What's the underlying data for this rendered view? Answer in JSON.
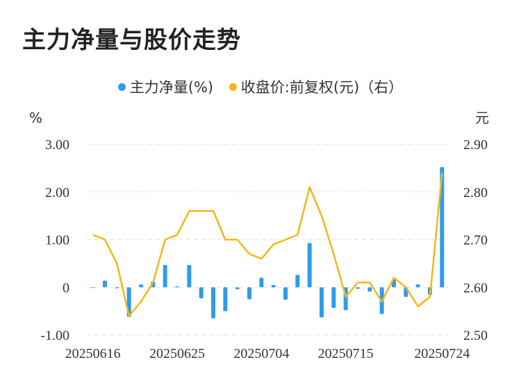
{
  "title": "主力净量与股价走势",
  "legend": {
    "series1": "主力净量(%)",
    "series2": "收盘价:前复权(元)（右）"
  },
  "colors": {
    "bar": "#2f9ceb",
    "line": "#f5b716",
    "grid": "#e3e3e3"
  },
  "chart_data": {
    "type": "bar",
    "title": "主力净量与股价走势",
    "y_left_unit": "%",
    "y_right_unit": "元",
    "y_left_ticks": [
      "3.00",
      "2.00",
      "1.00",
      "0",
      "-1.00"
    ],
    "y_right_ticks": [
      "2.90",
      "2.80",
      "2.70",
      "2.60",
      "2.50"
    ],
    "y_left_range": [
      -1.0,
      3.0
    ],
    "y_right_range": [
      2.5,
      2.9
    ],
    "x_tick_labels": [
      "20250616",
      "20250625",
      "20250704",
      "20250715",
      "20250724"
    ],
    "grid": true,
    "legend_position": "top-center",
    "series": [
      {
        "name": "主力净量(%)",
        "type": "bar",
        "axis": "left",
        "values": [
          0.0,
          0.14,
          -0.02,
          -0.62,
          0.06,
          0.12,
          0.47,
          0.02,
          0.47,
          -0.23,
          -0.65,
          -0.5,
          -0.04,
          -0.25,
          0.2,
          0.05,
          -0.26,
          0.26,
          0.93,
          -0.63,
          -0.43,
          -0.48,
          -0.03,
          -0.09,
          -0.56,
          0.16,
          -0.2,
          0.06,
          -0.16,
          2.52
        ]
      },
      {
        "name": "收盘价:前复权(元)（右）",
        "type": "line",
        "axis": "right",
        "values": [
          2.71,
          2.7,
          2.65,
          2.54,
          2.57,
          2.61,
          2.7,
          2.71,
          2.76,
          2.76,
          2.76,
          2.7,
          2.7,
          2.67,
          2.66,
          2.69,
          2.7,
          2.71,
          2.81,
          2.75,
          2.67,
          2.58,
          2.61,
          2.61,
          2.57,
          2.62,
          2.6,
          2.56,
          2.58,
          2.84
        ]
      }
    ]
  }
}
